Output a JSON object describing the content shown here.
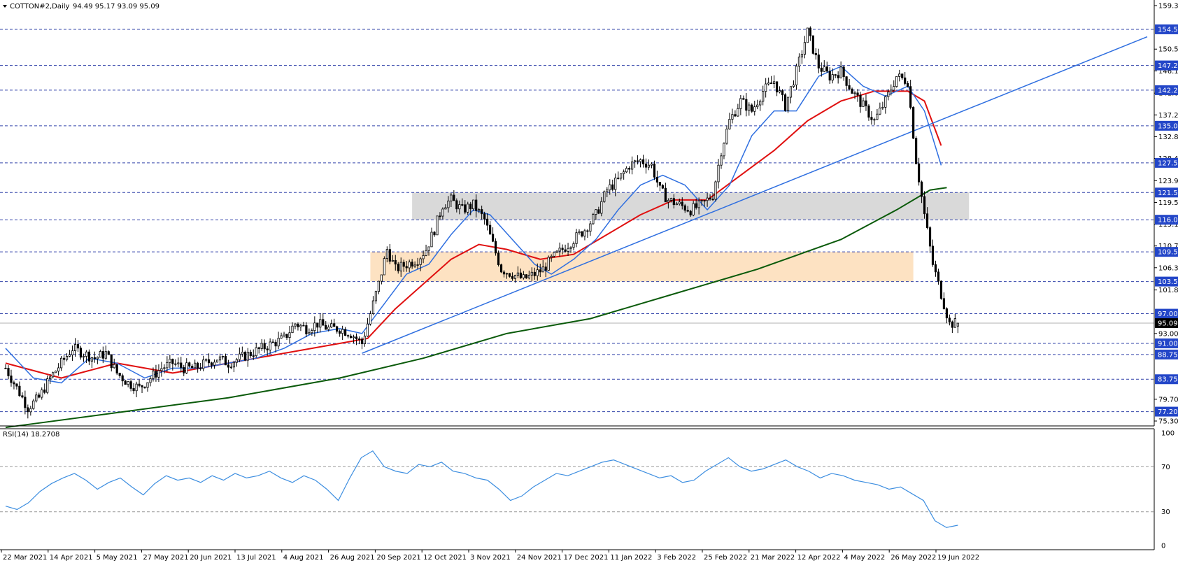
{
  "header": {
    "symbol": "COTTON#2,Daily",
    "ohlc": "94.49 95.17 93.09 95.09"
  },
  "rsi_header": "RSI(14) 18.2708",
  "colors": {
    "level_line": "#3344aa",
    "level_label_bg": "#2346c8",
    "current_label_bg": "#000000",
    "sma20": "#2f6fe0",
    "sma50": "#e01010",
    "sma200": "#0a5a0a",
    "trendline": "#2f6fe0",
    "gray_zone": "#d9d9d9",
    "orange_zone": "#fde2c2",
    "rsi_line": "#3d8ee0",
    "candle": "#000000"
  },
  "chart_data": [
    {
      "type": "candlestick",
      "symbol": "COTTON#2",
      "timeframe": "Daily",
      "last": {
        "open": 94.49,
        "high": 95.17,
        "low": 93.09,
        "close": 95.09
      },
      "y_axis_ticks": [
        "159.30",
        "154.50",
        "150.50",
        "147.20",
        "146.10",
        "142.20",
        "141.60",
        "137.20",
        "135.00",
        "132.80",
        "128.40",
        "127.50",
        "123.90",
        "121.50",
        "119.50",
        "116.00",
        "115.10",
        "110.70",
        "109.50",
        "106.30",
        "103.50",
        "101.80",
        "97.00",
        "95.09",
        "93.00",
        "91.00",
        "88.75",
        "83.75",
        "79.70",
        "77.20",
        "75.30"
      ],
      "ylim": [
        75.3,
        159.3
      ],
      "x_axis_ticks": [
        "22 Mar 2021",
        "14 Apr 2021",
        "5 May 2021",
        "27 May 2021",
        "20 Jun 2021",
        "13 Jul 2021",
        "4 Aug 2021",
        "26 Aug 2021",
        "20 Sep 2021",
        "12 Oct 2021",
        "3 Nov 2021",
        "24 Nov 2021",
        "17 Dec 2021",
        "11 Jan 2022",
        "3 Feb 2022",
        "25 Feb 2022",
        "21 Mar 2022",
        "12 Apr 2022",
        "4 May 2022",
        "26 May 2022",
        "19 Jun 2022"
      ],
      "levels": [
        "154.50",
        "147.20",
        "142.20",
        "135.00",
        "127.50",
        "121.50",
        "116.00",
        "109.50",
        "103.50",
        "97.00",
        "91.00",
        "88.75",
        "83.75",
        "77.20"
      ],
      "current_price": "95.09",
      "zones": [
        {
          "from": 116.0,
          "to": 121.5,
          "color": "gray"
        },
        {
          "from": 103.5,
          "to": 109.5,
          "color": "orange"
        }
      ],
      "close_series": [
        {
          "x": 0,
          "y": 86
        },
        {
          "x": 4,
          "y": 82
        },
        {
          "x": 8,
          "y": 78
        },
        {
          "x": 12,
          "y": 80
        },
        {
          "x": 16,
          "y": 84
        },
        {
          "x": 20,
          "y": 87
        },
        {
          "x": 24,
          "y": 90
        },
        {
          "x": 28,
          "y": 89
        },
        {
          "x": 32,
          "y": 88
        },
        {
          "x": 36,
          "y": 89
        },
        {
          "x": 40,
          "y": 85
        },
        {
          "x": 44,
          "y": 83
        },
        {
          "x": 48,
          "y": 82
        },
        {
          "x": 52,
          "y": 84
        },
        {
          "x": 56,
          "y": 86
        },
        {
          "x": 60,
          "y": 87
        },
        {
          "x": 64,
          "y": 86
        },
        {
          "x": 68,
          "y": 86
        },
        {
          "x": 72,
          "y": 87
        },
        {
          "x": 76,
          "y": 88
        },
        {
          "x": 80,
          "y": 87
        },
        {
          "x": 84,
          "y": 88
        },
        {
          "x": 88,
          "y": 89
        },
        {
          "x": 92,
          "y": 90
        },
        {
          "x": 96,
          "y": 91
        },
        {
          "x": 100,
          "y": 92
        },
        {
          "x": 104,
          "y": 95
        },
        {
          "x": 108,
          "y": 94
        },
        {
          "x": 112,
          "y": 95
        },
        {
          "x": 116,
          "y": 94
        },
        {
          "x": 120,
          "y": 94
        },
        {
          "x": 124,
          "y": 93
        },
        {
          "x": 128,
          "y": 91
        },
        {
          "x": 131,
          "y": 97
        },
        {
          "x": 134,
          "y": 103
        },
        {
          "x": 137,
          "y": 110
        },
        {
          "x": 140,
          "y": 106
        },
        {
          "x": 144,
          "y": 107
        },
        {
          "x": 148,
          "y": 108
        },
        {
          "x": 151,
          "y": 110
        },
        {
          "x": 154,
          "y": 114
        },
        {
          "x": 157,
          "y": 119
        },
        {
          "x": 160,
          "y": 120
        },
        {
          "x": 164,
          "y": 118
        },
        {
          "x": 168,
          "y": 119
        },
        {
          "x": 172,
          "y": 116
        },
        {
          "x": 175,
          "y": 111
        },
        {
          "x": 178,
          "y": 106
        },
        {
          "x": 182,
          "y": 105
        },
        {
          "x": 186,
          "y": 104
        },
        {
          "x": 190,
          "y": 105
        },
        {
          "x": 193,
          "y": 106
        },
        {
          "x": 196,
          "y": 108
        },
        {
          "x": 200,
          "y": 110
        },
        {
          "x": 204,
          "y": 112
        },
        {
          "x": 208,
          "y": 114
        },
        {
          "x": 212,
          "y": 117
        },
        {
          "x": 216,
          "y": 122
        },
        {
          "x": 220,
          "y": 124
        },
        {
          "x": 224,
          "y": 127
        },
        {
          "x": 228,
          "y": 128
        },
        {
          "x": 232,
          "y": 127
        },
        {
          "x": 235,
          "y": 122
        },
        {
          "x": 238,
          "y": 120
        },
        {
          "x": 242,
          "y": 119
        },
        {
          "x": 246,
          "y": 118
        },
        {
          "x": 250,
          "y": 119
        },
        {
          "x": 254,
          "y": 121
        },
        {
          "x": 257,
          "y": 130
        },
        {
          "x": 260,
          "y": 136
        },
        {
          "x": 264,
          "y": 140
        },
        {
          "x": 268,
          "y": 138
        },
        {
          "x": 272,
          "y": 142
        },
        {
          "x": 276,
          "y": 144
        },
        {
          "x": 280,
          "y": 139
        },
        {
          "x": 284,
          "y": 146
        },
        {
          "x": 288,
          "y": 154
        },
        {
          "x": 292,
          "y": 147
        },
        {
          "x": 296,
          "y": 145
        },
        {
          "x": 300,
          "y": 146
        },
        {
          "x": 304,
          "y": 142
        },
        {
          "x": 308,
          "y": 139
        },
        {
          "x": 312,
          "y": 136
        },
        {
          "x": 316,
          "y": 140
        },
        {
          "x": 320,
          "y": 145
        },
        {
          "x": 324,
          "y": 144
        },
        {
          "x": 327,
          "y": 128
        },
        {
          "x": 330,
          "y": 117
        },
        {
          "x": 333,
          "y": 107
        },
        {
          "x": 336,
          "y": 101
        },
        {
          "x": 339,
          "y": 95
        },
        {
          "x": 342,
          "y": 95.09
        }
      ],
      "sma20": [
        {
          "x": 0,
          "y": 90
        },
        {
          "x": 10,
          "y": 84
        },
        {
          "x": 20,
          "y": 83
        },
        {
          "x": 30,
          "y": 88
        },
        {
          "x": 40,
          "y": 87
        },
        {
          "x": 50,
          "y": 84
        },
        {
          "x": 60,
          "y": 86
        },
        {
          "x": 70,
          "y": 86
        },
        {
          "x": 80,
          "y": 87
        },
        {
          "x": 90,
          "y": 88
        },
        {
          "x": 100,
          "y": 90
        },
        {
          "x": 110,
          "y": 93
        },
        {
          "x": 120,
          "y": 94
        },
        {
          "x": 128,
          "y": 93
        },
        {
          "x": 136,
          "y": 99
        },
        {
          "x": 144,
          "y": 105
        },
        {
          "x": 152,
          "y": 107
        },
        {
          "x": 160,
          "y": 113
        },
        {
          "x": 168,
          "y": 118
        },
        {
          "x": 174,
          "y": 117
        },
        {
          "x": 182,
          "y": 112
        },
        {
          "x": 190,
          "y": 107
        },
        {
          "x": 196,
          "y": 105
        },
        {
          "x": 204,
          "y": 108
        },
        {
          "x": 212,
          "y": 112
        },
        {
          "x": 220,
          "y": 118
        },
        {
          "x": 228,
          "y": 123
        },
        {
          "x": 236,
          "y": 125
        },
        {
          "x": 244,
          "y": 123
        },
        {
          "x": 252,
          "y": 118
        },
        {
          "x": 260,
          "y": 123
        },
        {
          "x": 268,
          "y": 133
        },
        {
          "x": 276,
          "y": 138
        },
        {
          "x": 284,
          "y": 138
        },
        {
          "x": 292,
          "y": 145
        },
        {
          "x": 300,
          "y": 147
        },
        {
          "x": 308,
          "y": 143
        },
        {
          "x": 316,
          "y": 141
        },
        {
          "x": 324,
          "y": 143
        },
        {
          "x": 330,
          "y": 138
        },
        {
          "x": 336,
          "y": 127
        }
      ],
      "sma50": [
        {
          "x": 0,
          "y": 87
        },
        {
          "x": 20,
          "y": 84
        },
        {
          "x": 40,
          "y": 87
        },
        {
          "x": 60,
          "y": 85
        },
        {
          "x": 80,
          "y": 87
        },
        {
          "x": 100,
          "y": 89
        },
        {
          "x": 120,
          "y": 91
        },
        {
          "x": 130,
          "y": 92
        },
        {
          "x": 140,
          "y": 98
        },
        {
          "x": 150,
          "y": 103
        },
        {
          "x": 160,
          "y": 108
        },
        {
          "x": 170,
          "y": 111
        },
        {
          "x": 180,
          "y": 110
        },
        {
          "x": 192,
          "y": 108
        },
        {
          "x": 204,
          "y": 109
        },
        {
          "x": 216,
          "y": 113
        },
        {
          "x": 228,
          "y": 117
        },
        {
          "x": 240,
          "y": 120
        },
        {
          "x": 252,
          "y": 120
        },
        {
          "x": 264,
          "y": 125
        },
        {
          "x": 276,
          "y": 130
        },
        {
          "x": 288,
          "y": 136
        },
        {
          "x": 300,
          "y": 140
        },
        {
          "x": 312,
          "y": 142
        },
        {
          "x": 324,
          "y": 142
        },
        {
          "x": 330,
          "y": 140
        },
        {
          "x": 336,
          "y": 131
        }
      ],
      "sma200": [
        {
          "x": 0,
          "y": 74
        },
        {
          "x": 40,
          "y": 77
        },
        {
          "x": 80,
          "y": 80
        },
        {
          "x": 120,
          "y": 84
        },
        {
          "x": 150,
          "y": 88
        },
        {
          "x": 180,
          "y": 93
        },
        {
          "x": 210,
          "y": 96
        },
        {
          "x": 240,
          "y": 101
        },
        {
          "x": 270,
          "y": 106
        },
        {
          "x": 300,
          "y": 112
        },
        {
          "x": 320,
          "y": 118
        },
        {
          "x": 332,
          "y": 122
        },
        {
          "x": 338,
          "y": 122.5
        }
      ],
      "trendline": [
        {
          "x": 128,
          "y": 89
        },
        {
          "x": 410,
          "y": 153
        }
      ]
    },
    {
      "type": "line",
      "title": "RSI(14) 18.2708",
      "ylim": [
        0,
        100
      ],
      "y_axis_ticks": [
        "100",
        "70",
        "30",
        "0"
      ],
      "levels": [
        70,
        30
      ],
      "series": [
        {
          "values": [
            35,
            32,
            38,
            48,
            55,
            60,
            64,
            58,
            50,
            56,
            60,
            52,
            45,
            55,
            62,
            58,
            60,
            56,
            62,
            58,
            64,
            60,
            62,
            66,
            60,
            56,
            62,
            58,
            50,
            40,
            60,
            78,
            84,
            70,
            66,
            64,
            72,
            70,
            74,
            66,
            64,
            60,
            58,
            50,
            40,
            44,
            52,
            58,
            64,
            62,
            66,
            70,
            74,
            76,
            72,
            68,
            64,
            60,
            62,
            56,
            58,
            66,
            72,
            78,
            70,
            66,
            68,
            72,
            76,
            70,
            66,
            60,
            64,
            62,
            58,
            56,
            54,
            50,
            52,
            46,
            40,
            22,
            16,
            18
          ]
        }
      ]
    }
  ]
}
